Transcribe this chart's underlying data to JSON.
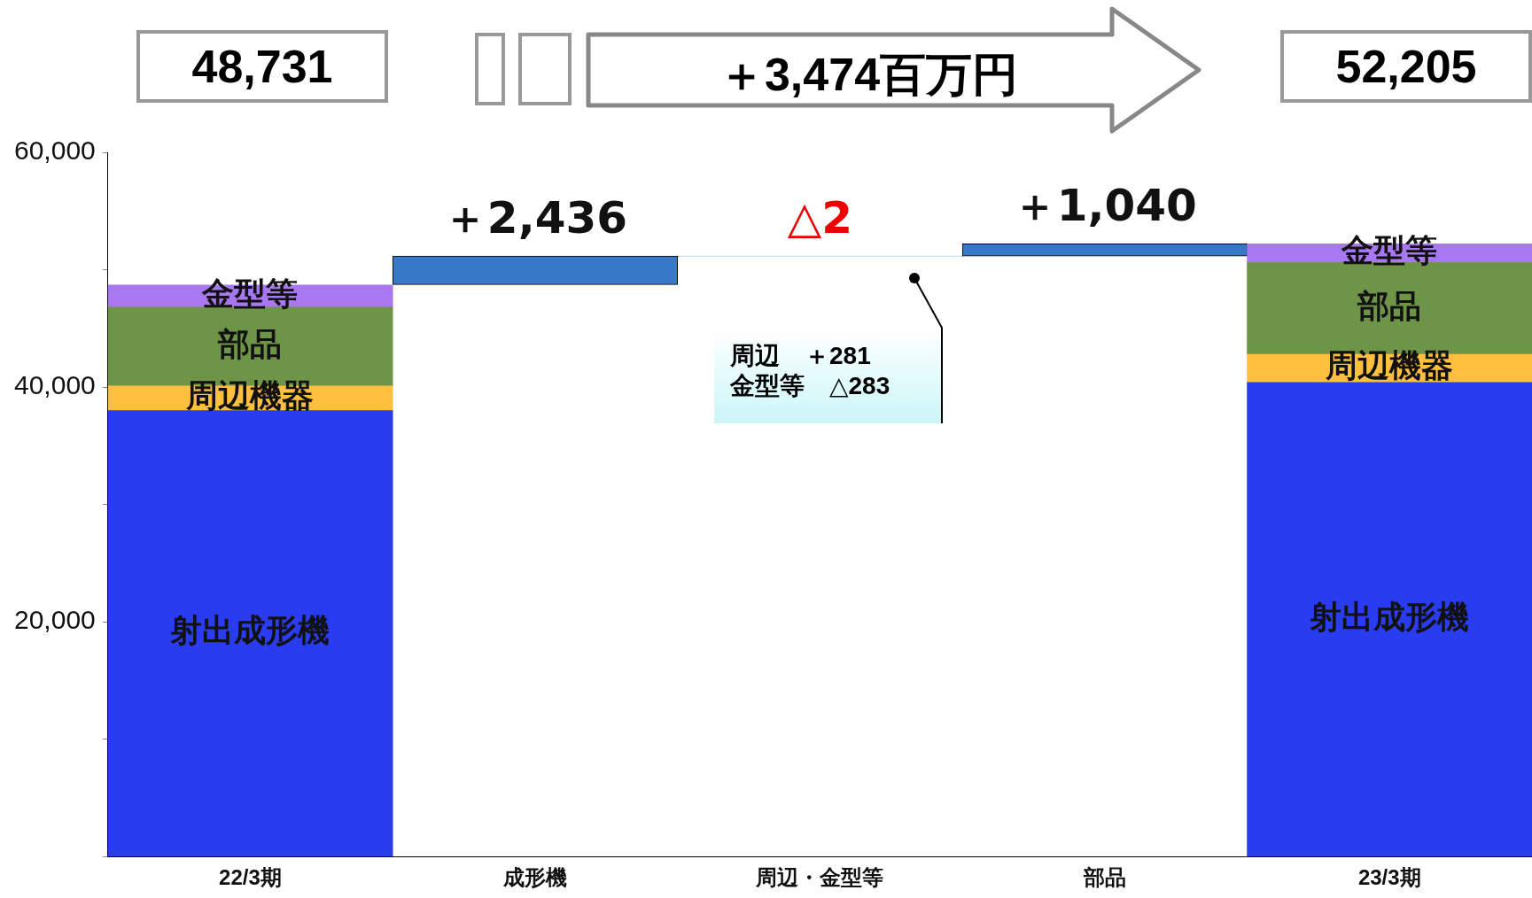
{
  "chart_data": {
    "type": "bar",
    "stacked": true,
    "categories": [
      "22/3期",
      "成形機",
      "周辺・金型等",
      "部品",
      "23/3期"
    ],
    "series": [
      {
        "name": "射出成形機",
        "color": "#2a3cf0",
        "values": [
          38000,
          null,
          null,
          null,
          40400
        ]
      },
      {
        "name": "周辺機器",
        "color": "#ffc040",
        "values": [
          2100,
          null,
          null,
          null,
          2400
        ]
      },
      {
        "name": "部品",
        "color": "#6e9448",
        "values": [
          6700,
          null,
          null,
          null,
          7800
        ]
      },
      {
        "name": "金型等",
        "color": "#a878f0",
        "values": [
          1900,
          null,
          null,
          null,
          1600
        ]
      },
      {
        "color": "#3878c8",
        "values": [
          null,
          2436,
          -2,
          1040,
          null
        ],
        "base": [
          null,
          48731,
          51167,
          51165,
          null
        ],
        "value_labels": [
          null,
          "＋2,436",
          "△2",
          "＋1,040",
          null
        ]
      }
    ],
    "ylim": [
      0,
      60000
    ],
    "yticks": [
      {
        "value": 0,
        "label": null
      },
      {
        "value": 10000,
        "label": null
      },
      {
        "value": 20000,
        "label": "20,000"
      },
      {
        "value": 30000,
        "label": null
      },
      {
        "value": 40000,
        "label": "40,000"
      },
      {
        "value": 50000,
        "label": null
      },
      {
        "value": 60000,
        "label": "60,000"
      }
    ],
    "legend": false,
    "annotations": [
      "48,731",
      "＋3,474百万円",
      "52,205",
      "周辺　＋281",
      "金型等　△283"
    ]
  }
}
